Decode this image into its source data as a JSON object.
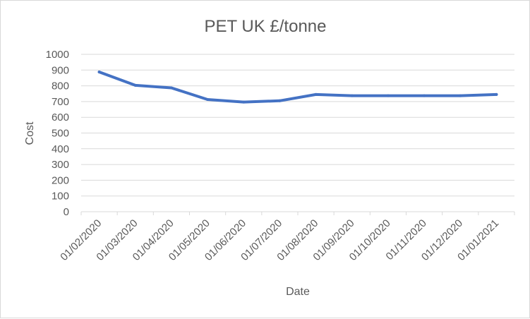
{
  "chart_data": {
    "type": "line",
    "title": "PET UK £/tonne",
    "xlabel": "Date",
    "ylabel": "Cost",
    "ylim": [
      0,
      1000
    ],
    "yticks": [
      0,
      100,
      200,
      300,
      400,
      500,
      600,
      700,
      800,
      900,
      1000
    ],
    "grid": true,
    "legend": "none",
    "categories": [
      "01/02/2020",
      "01/03/2020",
      "01/04/2020",
      "01/05/2020",
      "01/06/2020",
      "01/07/2020",
      "01/08/2020",
      "01/09/2020",
      "01/10/2020",
      "01/11/2020",
      "01/12/2020",
      "01/01/2021"
    ],
    "series": [
      {
        "values": [
          888,
          803,
          787,
          713,
          697,
          705,
          745,
          737,
          737,
          737,
          737,
          745
        ],
        "color": "#4472c4"
      }
    ]
  }
}
